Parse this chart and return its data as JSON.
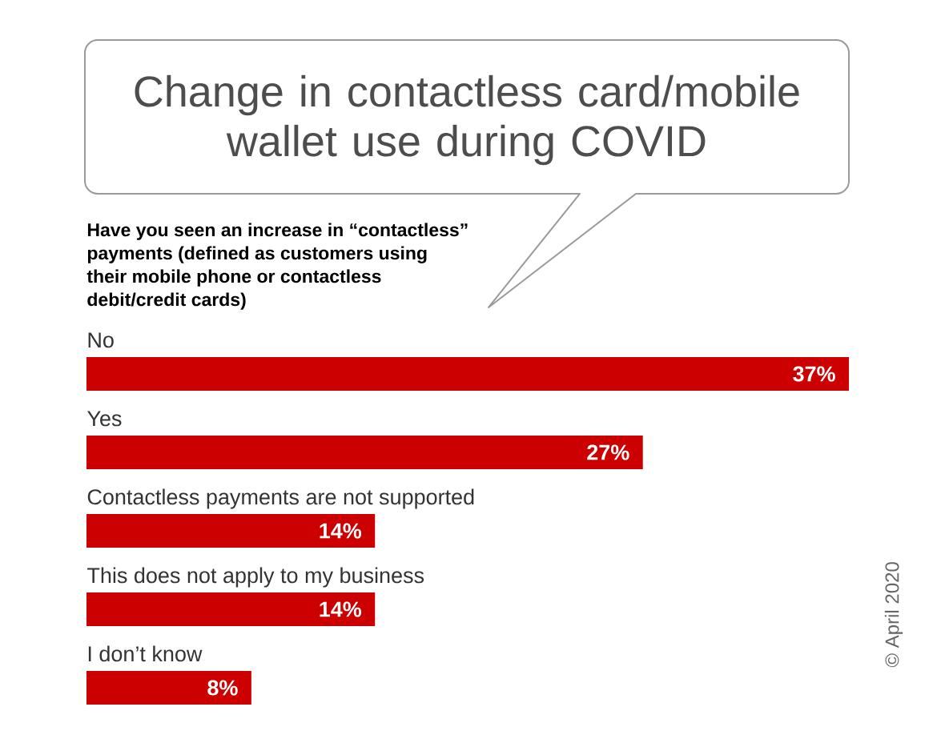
{
  "chart_data": {
    "type": "bar",
    "orientation": "horizontal",
    "title": "Change in contactless card/mobile wallet use during COVID",
    "subtitle": "Have you seen an increase in “contactless” payments (defined as customers using their mobile phone or contactless debit/credit cards)",
    "categories": [
      "No",
      "Yes",
      "Contactless payments are not supported",
      "This does not apply to my business",
      "I don’t know"
    ],
    "values": [
      37,
      27,
      14,
      14,
      8
    ],
    "value_labels": [
      "37%",
      "27%",
      "14%",
      "14%",
      "8%"
    ],
    "color": "#cc0000",
    "annotations": [
      "© April 2020"
    ]
  }
}
